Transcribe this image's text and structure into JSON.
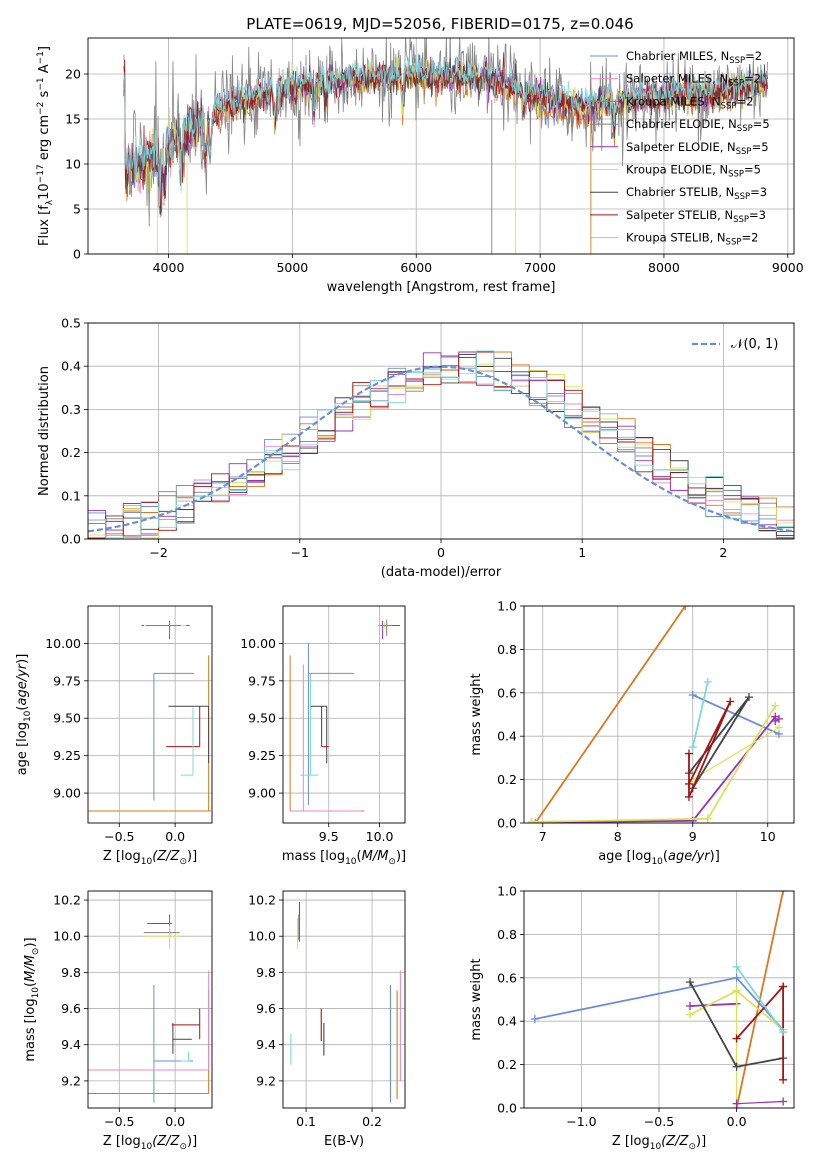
{
  "figure_title": "PLATE=0619, MJD=52056, FIBERID=0175, z=0.046",
  "series_styles": [
    {
      "name": "Chabrier MILES, N",
      "nssp": "2",
      "color": "#6a8fd8"
    },
    {
      "name": "Salpeter MILES, N",
      "nssp": "2",
      "color": "#e889c8"
    },
    {
      "name": "Kroupa MILES, N",
      "nssp": "2",
      "color": "#d9781e"
    },
    {
      "name": "Chabrier ELODIE, N",
      "nssp": "5",
      "color": "#808080"
    },
    {
      "name": "Salpeter ELODIE, N",
      "nssp": "5",
      "color": "#9b30b0"
    },
    {
      "name": "Kroupa ELODIE, N",
      "nssp": "5",
      "color": "#d8e35a"
    },
    {
      "name": "Chabrier STELIB, N",
      "nssp": "3",
      "color": "#444444"
    },
    {
      "name": "Salpeter STELIB, N",
      "nssp": "3",
      "color": "#a31515"
    },
    {
      "name": "Kroupa STELIB, N",
      "nssp": "2",
      "color": "#7fd6e0"
    }
  ],
  "chart_data": [
    {
      "id": "spectrum",
      "type": "line",
      "xlabel": "wavelength [Angstrom, rest frame]",
      "ylabel": "Flux [f_λ 10^-17 erg cm^-2 s^-1 A^-1]",
      "xlim": [
        3350,
        9050
      ],
      "ylim": [
        0,
        24
      ],
      "xticks": [
        4000,
        5000,
        6000,
        7000,
        8000,
        9000
      ],
      "yticks": [
        0,
        5,
        10,
        15,
        20
      ],
      "legend_position": "top-right",
      "continuum": {
        "x": [
          3650,
          3900,
          4100,
          4400,
          4700,
          5000,
          5500,
          6000,
          6400,
          6700,
          7000,
          7300,
          7600,
          8000,
          8400,
          8800
        ],
        "y": [
          9,
          11,
          13,
          16,
          17.5,
          18.5,
          19.5,
          20,
          19.5,
          19,
          17.5,
          16.5,
          17,
          17.5,
          18,
          19
        ]
      }
    },
    {
      "id": "residuals",
      "type": "line",
      "xlabel": "(data-model)/error",
      "ylabel": "Normed distribution",
      "xlim": [
        -2.5,
        2.5
      ],
      "ylim": [
        0,
        0.5
      ],
      "xticks": [
        -2,
        -1,
        0,
        1,
        2
      ],
      "yticks": [
        0,
        0.1,
        0.2,
        0.3,
        0.4,
        0.5
      ],
      "legend": "𝒩(0, 1)",
      "legend_position": "top-right"
    },
    {
      "id": "age_vs_Z",
      "type": "scatter",
      "xlabel": "Z [log10(Z/Z⊙)]",
      "ylabel": "age  [log10(age/yr)]",
      "xlim": [
        -0.78,
        0.33
      ],
      "ylim": [
        8.8,
        10.25
      ],
      "xticks": [
        -0.5,
        0.0
      ],
      "yticks": [
        9.0,
        9.25,
        9.5,
        9.75,
        10.0
      ]
    },
    {
      "id": "age_vs_mass",
      "type": "scatter",
      "xlabel": "mass [log10(M/M⊙)]",
      "xlim": [
        9.05,
        10.25
      ],
      "ylim": [
        8.8,
        10.25
      ],
      "xticks": [
        9.5,
        10.0
      ],
      "yticks": [
        9.0,
        9.25,
        9.5,
        9.75,
        10.0
      ]
    },
    {
      "id": "massweight_vs_age",
      "type": "line",
      "xlabel": "age  [log10(age/yr)]",
      "ylabel": "mass weight",
      "xlim": [
        6.75,
        10.35
      ],
      "ylim": [
        0,
        1.0
      ],
      "xticks": [
        7,
        8,
        9,
        10
      ],
      "yticks": [
        0.0,
        0.2,
        0.4,
        0.6,
        0.8,
        1.0
      ]
    },
    {
      "id": "mass_vs_Z",
      "type": "scatter",
      "xlabel": "Z [log10(Z/Z⊙)]",
      "ylabel": "mass [log10(M/M⊙)]",
      "xlim": [
        -0.78,
        0.33
      ],
      "ylim": [
        9.05,
        10.25
      ],
      "xticks": [
        -0.5,
        0.0
      ],
      "yticks": [
        9.2,
        9.4,
        9.6,
        9.8,
        10.0,
        10.2
      ]
    },
    {
      "id": "mass_vs_ebv",
      "type": "scatter",
      "xlabel": "E(B-V)",
      "xlim": [
        0.065,
        0.25
      ],
      "ylim": [
        9.05,
        10.25
      ],
      "xticks": [
        0.1,
        0.2
      ],
      "yticks": [
        9.2,
        9.4,
        9.6,
        9.8,
        10.0,
        10.2
      ]
    },
    {
      "id": "massweight_vs_Z",
      "type": "line",
      "xlabel": "Z [log10(Z/Z⊙)]",
      "ylabel": "mass weight",
      "xlim": [
        -1.37,
        0.37
      ],
      "ylim": [
        0,
        1.0
      ],
      "xticks": [
        -1.0,
        -0.5,
        0.0
      ],
      "yticks": [
        0.0,
        0.2,
        0.4,
        0.6,
        0.8,
        1.0
      ]
    }
  ]
}
